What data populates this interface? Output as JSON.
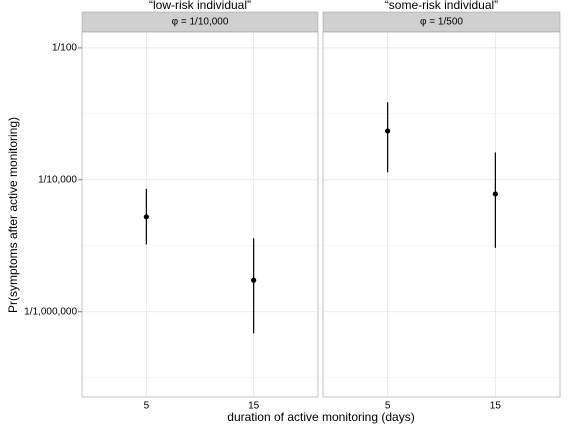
{
  "chart_data": {
    "type": "pointrange",
    "ylabel": "Pr(symptoms after active monitoring)",
    "xlabel": "duration of active monitoring (days)",
    "log_y": true,
    "grid": true,
    "color": "#000000",
    "ylim": [
      5.1e-08,
      0.0174
    ],
    "yticks": [
      {
        "value": 0.01,
        "label": "1/100"
      },
      {
        "value": 0.0001,
        "label": "1/10,000"
      },
      {
        "value": 1e-06,
        "label": "1/1,000,000"
      }
    ],
    "minor_yticks": [
      0.001,
      1e-05,
      1e-07
    ],
    "facets": [
      {
        "title": "“low-risk individual”",
        "strip": "φ = 1/10,000",
        "categories": [
          "5",
          "15"
        ],
        "values": [
          2.75e-05,
          3e-06
        ],
        "lower": [
          1.05e-05,
          4.7e-07
        ],
        "upper": [
          7.3e-05,
          1.3e-05
        ]
      },
      {
        "title": "“some-risk individual”",
        "strip": "φ = 1/500",
        "categories": [
          "5",
          "15"
        ],
        "values": [
          0.00055,
          6.1e-05
        ],
        "lower": [
          0.00013,
          9.3e-06
        ],
        "upper": [
          0.0015,
          0.00026
        ]
      }
    ]
  }
}
